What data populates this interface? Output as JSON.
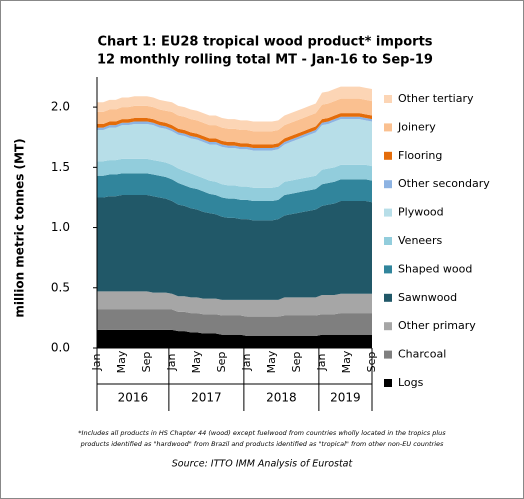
{
  "chart_data": {
    "type": "stacked_area",
    "title": "Chart 1: EU28 tropical wood product* imports",
    "subtitle": "12 monthly rolling total MT - Jan-16 to Sep-19",
    "ylabel": "million metric tonnes (MT)",
    "footnote": [
      "*Includes all products in HS Chapter 44 (wood) except fuelwood from countries wholly located in the tropics plus",
      "products identified as \"hardwood\" from Brazil and products identified as \"tropical\" from other non-EU countries"
    ],
    "source": "Source: ITTO IMM Analysis of Eurostat",
    "categories": [
      "Jan",
      null,
      null,
      null,
      "May",
      null,
      null,
      null,
      "Sep",
      null,
      null,
      null,
      "Jan",
      null,
      null,
      null,
      "May",
      null,
      null,
      null,
      "Sep",
      null,
      null,
      null,
      "Jan",
      null,
      null,
      null,
      "May",
      null,
      null,
      null,
      "Sep",
      null,
      null,
      null,
      "Jan",
      null,
      null,
      null,
      "May",
      null,
      null,
      null,
      "Sep"
    ],
    "years": [
      "2016",
      "2017",
      "2018",
      "2019"
    ],
    "ylim": [
      0,
      2.25
    ],
    "yticks": [
      {
        "value": 0,
        "label": "0.0"
      },
      0.5,
      {
        "value": 1,
        "label": "1.0"
      },
      1.5,
      {
        "value": 2,
        "label": "2.0"
      }
    ],
    "series": [
      {
        "name": "Logs",
        "color": "#000000",
        "values": [
          0.15,
          0.15,
          0.15,
          0.15,
          0.15,
          0.15,
          0.15,
          0.15,
          0.15,
          0.15,
          0.15,
          0.15,
          0.15,
          0.14,
          0.14,
          0.13,
          0.13,
          0.12,
          0.12,
          0.12,
          0.11,
          0.11,
          0.11,
          0.11,
          0.1,
          0.1,
          0.1,
          0.1,
          0.1,
          0.1,
          0.1,
          0.1,
          0.1,
          0.1,
          0.1,
          0.1,
          0.11,
          0.11,
          0.11,
          0.11,
          0.11,
          0.11,
          0.11,
          0.11,
          0.11
        ]
      },
      {
        "name": "Charcoal",
        "color": "#7f7f7f",
        "values": [
          0.17,
          0.17,
          0.17,
          0.17,
          0.17,
          0.17,
          0.17,
          0.17,
          0.17,
          0.17,
          0.17,
          0.17,
          0.17,
          0.16,
          0.16,
          0.16,
          0.16,
          0.16,
          0.16,
          0.16,
          0.16,
          0.16,
          0.16,
          0.16,
          0.16,
          0.16,
          0.16,
          0.16,
          0.16,
          0.16,
          0.17,
          0.17,
          0.17,
          0.17,
          0.17,
          0.17,
          0.17,
          0.17,
          0.17,
          0.18,
          0.18,
          0.18,
          0.18,
          0.18,
          0.18
        ]
      },
      {
        "name": "Other primary",
        "color": "#a6a6a6",
        "values": [
          0.15,
          0.15,
          0.15,
          0.15,
          0.15,
          0.15,
          0.15,
          0.15,
          0.15,
          0.14,
          0.14,
          0.14,
          0.13,
          0.13,
          0.13,
          0.13,
          0.13,
          0.13,
          0.13,
          0.13,
          0.13,
          0.13,
          0.13,
          0.13,
          0.14,
          0.14,
          0.14,
          0.14,
          0.14,
          0.14,
          0.15,
          0.15,
          0.15,
          0.15,
          0.15,
          0.15,
          0.16,
          0.16,
          0.16,
          0.16,
          0.16,
          0.16,
          0.16,
          0.16,
          0.16
        ]
      },
      {
        "name": "Sawnwood",
        "color": "#215868",
        "values": [
          0.78,
          0.78,
          0.79,
          0.79,
          0.8,
          0.8,
          0.8,
          0.8,
          0.8,
          0.8,
          0.79,
          0.78,
          0.77,
          0.76,
          0.75,
          0.74,
          0.73,
          0.72,
          0.71,
          0.7,
          0.69,
          0.68,
          0.68,
          0.67,
          0.67,
          0.66,
          0.66,
          0.66,
          0.66,
          0.67,
          0.68,
          0.69,
          0.7,
          0.71,
          0.72,
          0.73,
          0.74,
          0.75,
          0.76,
          0.77,
          0.77,
          0.77,
          0.77,
          0.77,
          0.76
        ]
      },
      {
        "name": "Shaped wood",
        "color": "#31859c",
        "values": [
          0.18,
          0.18,
          0.18,
          0.18,
          0.18,
          0.18,
          0.18,
          0.18,
          0.18,
          0.18,
          0.18,
          0.18,
          0.18,
          0.18,
          0.17,
          0.17,
          0.17,
          0.17,
          0.16,
          0.16,
          0.16,
          0.16,
          0.16,
          0.16,
          0.16,
          0.16,
          0.16,
          0.16,
          0.16,
          0.16,
          0.17,
          0.17,
          0.17,
          0.17,
          0.17,
          0.17,
          0.18,
          0.18,
          0.18,
          0.18,
          0.18,
          0.18,
          0.18,
          0.18,
          0.18
        ]
      },
      {
        "name": "Veneers",
        "color": "#92cddc",
        "values": [
          0.12,
          0.12,
          0.12,
          0.12,
          0.12,
          0.12,
          0.12,
          0.12,
          0.12,
          0.12,
          0.12,
          0.12,
          0.12,
          0.12,
          0.12,
          0.12,
          0.11,
          0.11,
          0.11,
          0.11,
          0.11,
          0.11,
          0.11,
          0.11,
          0.11,
          0.11,
          0.11,
          0.11,
          0.11,
          0.11,
          0.11,
          0.11,
          0.11,
          0.11,
          0.11,
          0.11,
          0.12,
          0.12,
          0.12,
          0.12,
          0.12,
          0.12,
          0.12,
          0.12,
          0.12
        ]
      },
      {
        "name": "Plywood",
        "color": "#b7dee8",
        "values": [
          0.26,
          0.26,
          0.27,
          0.27,
          0.28,
          0.28,
          0.29,
          0.29,
          0.29,
          0.29,
          0.28,
          0.28,
          0.28,
          0.28,
          0.29,
          0.29,
          0.3,
          0.3,
          0.3,
          0.31,
          0.31,
          0.31,
          0.31,
          0.31,
          0.31,
          0.31,
          0.31,
          0.31,
          0.31,
          0.31,
          0.31,
          0.32,
          0.33,
          0.34,
          0.35,
          0.36,
          0.37,
          0.37,
          0.38,
          0.38,
          0.38,
          0.38,
          0.38,
          0.37,
          0.37
        ]
      },
      {
        "name": "Other secondary",
        "color": "#8db3e2",
        "values": [
          0.02,
          0.02,
          0.02,
          0.02,
          0.02,
          0.02,
          0.02,
          0.02,
          0.02,
          0.02,
          0.02,
          0.02,
          0.02,
          0.02,
          0.02,
          0.02,
          0.02,
          0.02,
          0.02,
          0.02,
          0.02,
          0.02,
          0.02,
          0.02,
          0.02,
          0.02,
          0.02,
          0.02,
          0.02,
          0.02,
          0.02,
          0.02,
          0.02,
          0.02,
          0.02,
          0.02,
          0.02,
          0.02,
          0.02,
          0.02,
          0.02,
          0.02,
          0.02,
          0.02,
          0.02
        ]
      },
      {
        "name": "Flooring",
        "color": "#e46c0a",
        "values": [
          0.03,
          0.03,
          0.03,
          0.03,
          0.03,
          0.03,
          0.03,
          0.03,
          0.03,
          0.03,
          0.03,
          0.03,
          0.03,
          0.03,
          0.03,
          0.03,
          0.03,
          0.03,
          0.03,
          0.03,
          0.03,
          0.03,
          0.03,
          0.03,
          0.03,
          0.03,
          0.03,
          0.03,
          0.03,
          0.03,
          0.03,
          0.03,
          0.03,
          0.03,
          0.03,
          0.03,
          0.03,
          0.03,
          0.03,
          0.03,
          0.03,
          0.03,
          0.03,
          0.03,
          0.03
        ]
      },
      {
        "name": "Joinery",
        "color": "#fac090",
        "values": [
          0.1,
          0.1,
          0.1,
          0.1,
          0.1,
          0.1,
          0.1,
          0.1,
          0.1,
          0.1,
          0.1,
          0.1,
          0.11,
          0.11,
          0.11,
          0.11,
          0.11,
          0.11,
          0.11,
          0.11,
          0.11,
          0.11,
          0.11,
          0.11,
          0.11,
          0.11,
          0.11,
          0.11,
          0.11,
          0.11,
          0.11,
          0.11,
          0.11,
          0.11,
          0.11,
          0.11,
          0.12,
          0.12,
          0.12,
          0.12,
          0.12,
          0.12,
          0.12,
          0.12,
          0.12
        ]
      },
      {
        "name": "Other tertiary",
        "color": "#fcd5b5",
        "values": [
          0.08,
          0.08,
          0.08,
          0.08,
          0.08,
          0.08,
          0.08,
          0.08,
          0.08,
          0.08,
          0.08,
          0.08,
          0.08,
          0.08,
          0.08,
          0.08,
          0.08,
          0.08,
          0.08,
          0.08,
          0.08,
          0.08,
          0.08,
          0.08,
          0.08,
          0.08,
          0.08,
          0.08,
          0.08,
          0.08,
          0.08,
          0.08,
          0.08,
          0.08,
          0.08,
          0.08,
          0.1,
          0.1,
          0.1,
          0.1,
          0.1,
          0.1,
          0.1,
          0.1,
          0.1
        ]
      }
    ]
  }
}
